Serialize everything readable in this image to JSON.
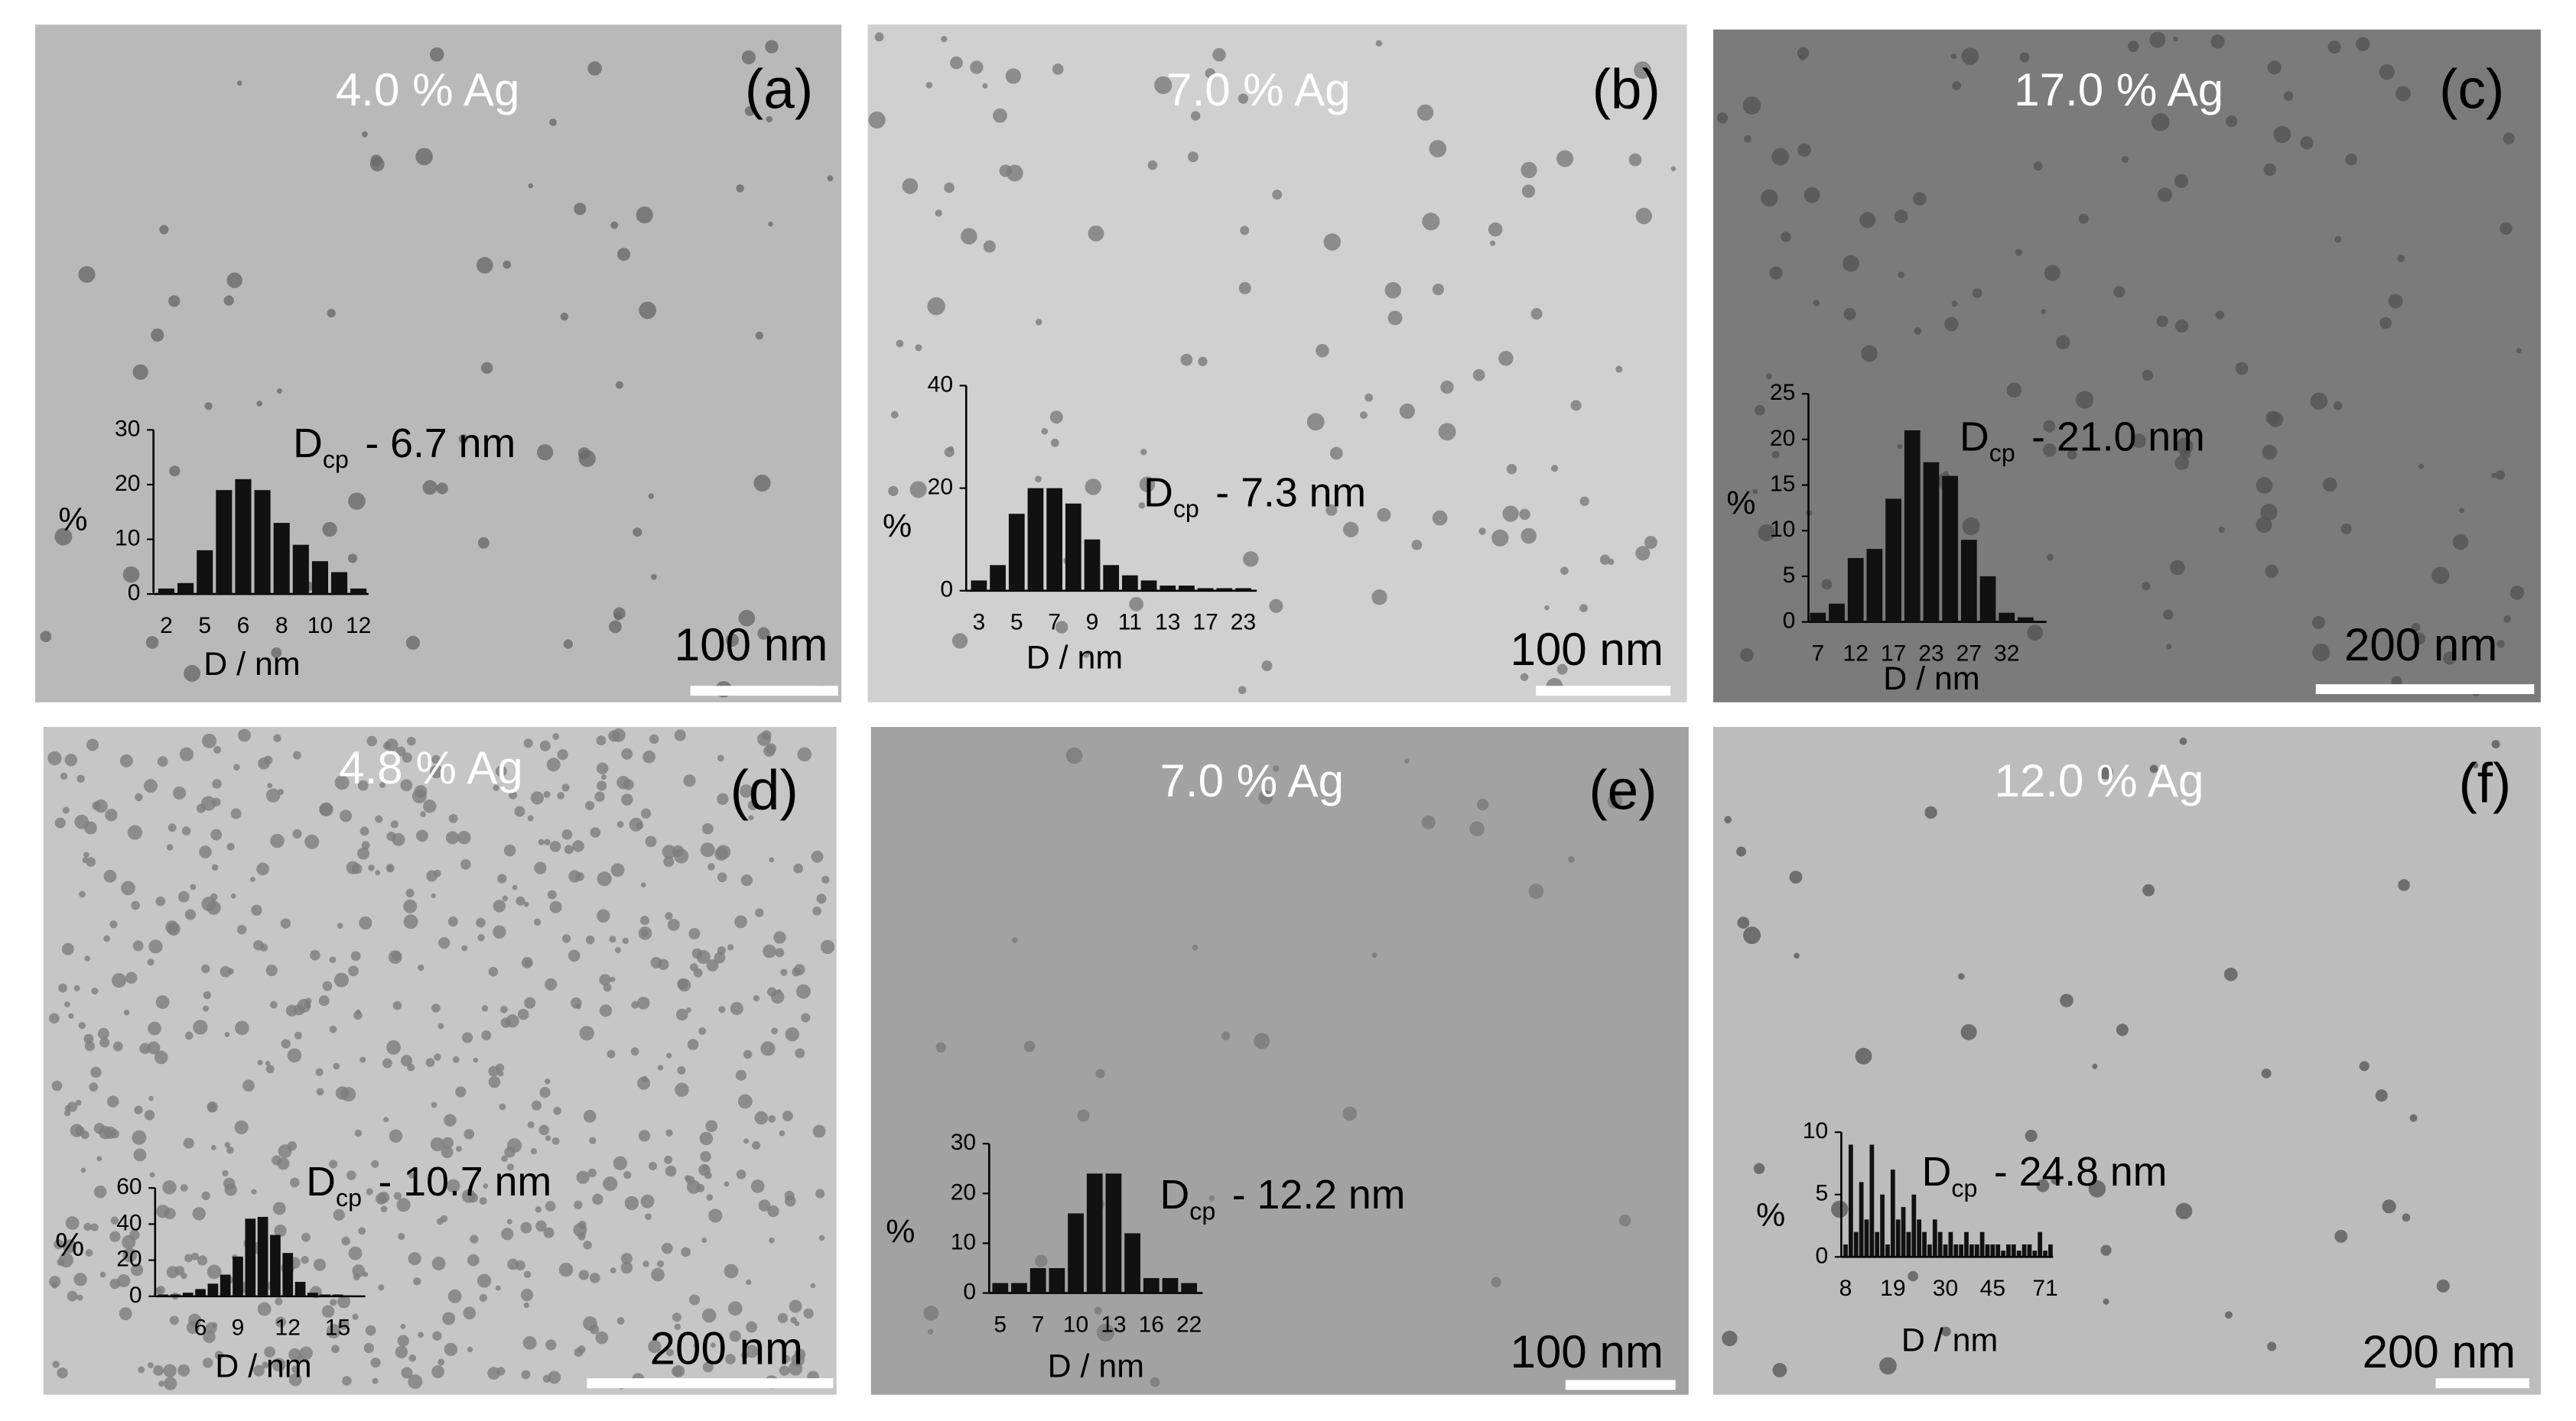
{
  "chart_data": [
    {
      "type": "bar",
      "title": "4.0 % Ag",
      "panel_label": "(a)",
      "scale_bar": "100 nm",
      "annotation_symbol": "D",
      "annotation_subscript": "cp",
      "annotation_text": "- 6.7 nm",
      "x_label": "D / nm",
      "y_label": "%",
      "color": "#111111",
      "categories": [
        "2",
        null,
        "5",
        null,
        "6",
        null,
        "8",
        null,
        "10",
        null,
        "12"
      ],
      "values": [
        1,
        2,
        8,
        19,
        21,
        19,
        13,
        9,
        6,
        4,
        1
      ],
      "ylim": [
        0,
        30
      ],
      "yticks": [
        0,
        10,
        20,
        30
      ]
    },
    {
      "type": "bar",
      "title": "7.0 % Ag",
      "panel_label": "(b)",
      "scale_bar": "100 nm",
      "annotation_symbol": "D",
      "annotation_subscript": "cp",
      "annotation_text": "- 7.3 nm",
      "x_label": "D / nm",
      "y_label": "%",
      "color": "#111111",
      "categories": [
        "3",
        null,
        "5",
        null,
        "7",
        null,
        "9",
        null,
        "11",
        null,
        "13",
        null,
        "17",
        null,
        "23"
      ],
      "values": [
        2,
        5,
        15,
        20,
        20,
        17,
        10,
        5,
        3,
        2,
        1,
        1,
        0.5,
        0.5,
        0.5
      ],
      "ylim": [
        0,
        40
      ],
      "yticks": [
        0,
        20,
        40
      ]
    },
    {
      "type": "bar",
      "title": "17.0 % Ag",
      "panel_label": "(c)",
      "scale_bar": "200 nm",
      "annotation_symbol": "D",
      "annotation_subscript": "cp",
      "annotation_text": "- 21.0 nm",
      "x_label": "D / nm",
      "y_label": "%",
      "color": "#111111",
      "categories": [
        "7",
        null,
        "12",
        null,
        "17",
        null,
        "23",
        null,
        "27",
        null,
        "32",
        null
      ],
      "values": [
        1,
        2,
        7,
        8,
        13.5,
        21,
        17.5,
        16,
        9,
        5,
        1,
        0.5
      ],
      "ylim": [
        0,
        25
      ],
      "yticks": [
        0,
        5,
        10,
        15,
        20,
        25
      ]
    },
    {
      "type": "bar",
      "title": "4.8 % Ag",
      "panel_label": "(d)",
      "scale_bar": "200 nm",
      "annotation_symbol": "D",
      "annotation_subscript": "cp",
      "annotation_text": "- 10.7 nm",
      "x_label": "D / nm",
      "y_label": "%",
      "color": "#111111",
      "categories": [
        null,
        null,
        null,
        "6",
        null,
        null,
        "9",
        null,
        null,
        null,
        "12",
        null,
        null,
        null,
        "15",
        null
      ],
      "values": [
        1,
        1,
        2,
        4,
        7,
        12,
        22,
        43,
        44,
        34,
        24,
        8,
        2,
        1,
        1,
        0.5
      ],
      "ylim": [
        0,
        60
      ],
      "yticks": [
        0,
        20,
        40,
        60
      ]
    },
    {
      "type": "bar",
      "title": "7.0 % Ag",
      "panel_label": "(e)",
      "scale_bar": "100 nm",
      "annotation_symbol": "D",
      "annotation_subscript": "cp",
      "annotation_text": "- 12.2 nm",
      "x_label": "D / nm",
      "y_label": "%",
      "color": "#111111",
      "categories": [
        "5",
        null,
        "7",
        null,
        "10",
        null,
        "13",
        null,
        "16",
        null,
        "22"
      ],
      "values": [
        2,
        2,
        5,
        5,
        16,
        24,
        24,
        12,
        3,
        3,
        2
      ],
      "ylim": [
        0,
        30
      ],
      "yticks": [
        0,
        10,
        20,
        30
      ]
    },
    {
      "type": "bar",
      "title": "12.0 % Ag",
      "panel_label": "(f)",
      "scale_bar": "200 nm",
      "annotation_symbol": "D",
      "annotation_subscript": "cp",
      "annotation_text": "- 24.8 nm",
      "x_label": "D / nm",
      "y_label": "%",
      "color": "#111111",
      "categories": [
        "8",
        null,
        null,
        null,
        null,
        null,
        null,
        null,
        null,
        "19",
        null,
        null,
        null,
        null,
        null,
        null,
        null,
        null,
        null,
        "30",
        null,
        null,
        null,
        null,
        null,
        null,
        null,
        null,
        "45",
        null,
        null,
        null,
        null,
        null,
        null,
        null,
        null,
        null,
        "71",
        null
      ],
      "values": [
        1,
        9,
        2,
        6,
        3,
        9,
        2,
        5,
        1,
        7,
        3,
        4,
        2,
        5,
        3,
        2,
        1,
        3,
        2,
        1,
        2,
        1,
        1,
        2,
        1,
        1,
        2,
        1,
        1,
        1,
        0.5,
        1,
        1,
        0.5,
        1,
        1,
        0.5,
        2,
        0.5,
        1
      ],
      "ylim": [
        0,
        10
      ],
      "yticks": [
        0,
        5,
        10
      ]
    }
  ]
}
